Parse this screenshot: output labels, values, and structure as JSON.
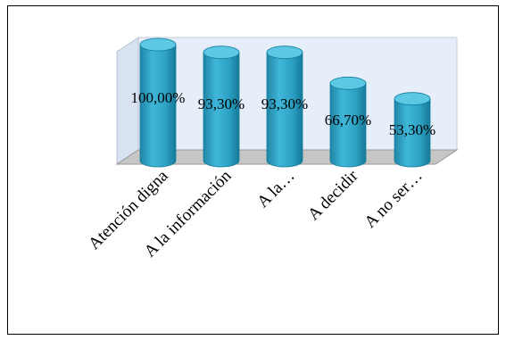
{
  "chart_data": {
    "type": "bar",
    "style": "3d-cylinder",
    "title": "",
    "xlabel": "",
    "ylabel": "",
    "categories": [
      "Atención digna",
      "A la información",
      "A la…",
      "A decidir",
      "A no ser…"
    ],
    "values": [
      100.0,
      93.3,
      93.3,
      66.7,
      53.3
    ],
    "data_labels": [
      "100,00%",
      "93,30%",
      "93,30%",
      "66,70%",
      "53,30%"
    ],
    "ylim": [
      0,
      100
    ],
    "grid": false,
    "legend": "none",
    "colors": {
      "bar_body": "#33a9cc",
      "bar_top": "#5cc8e4",
      "bar_edge": "#137d9c",
      "back_wall": "#e6eef9",
      "floor": "#c6c6c6"
    }
  }
}
